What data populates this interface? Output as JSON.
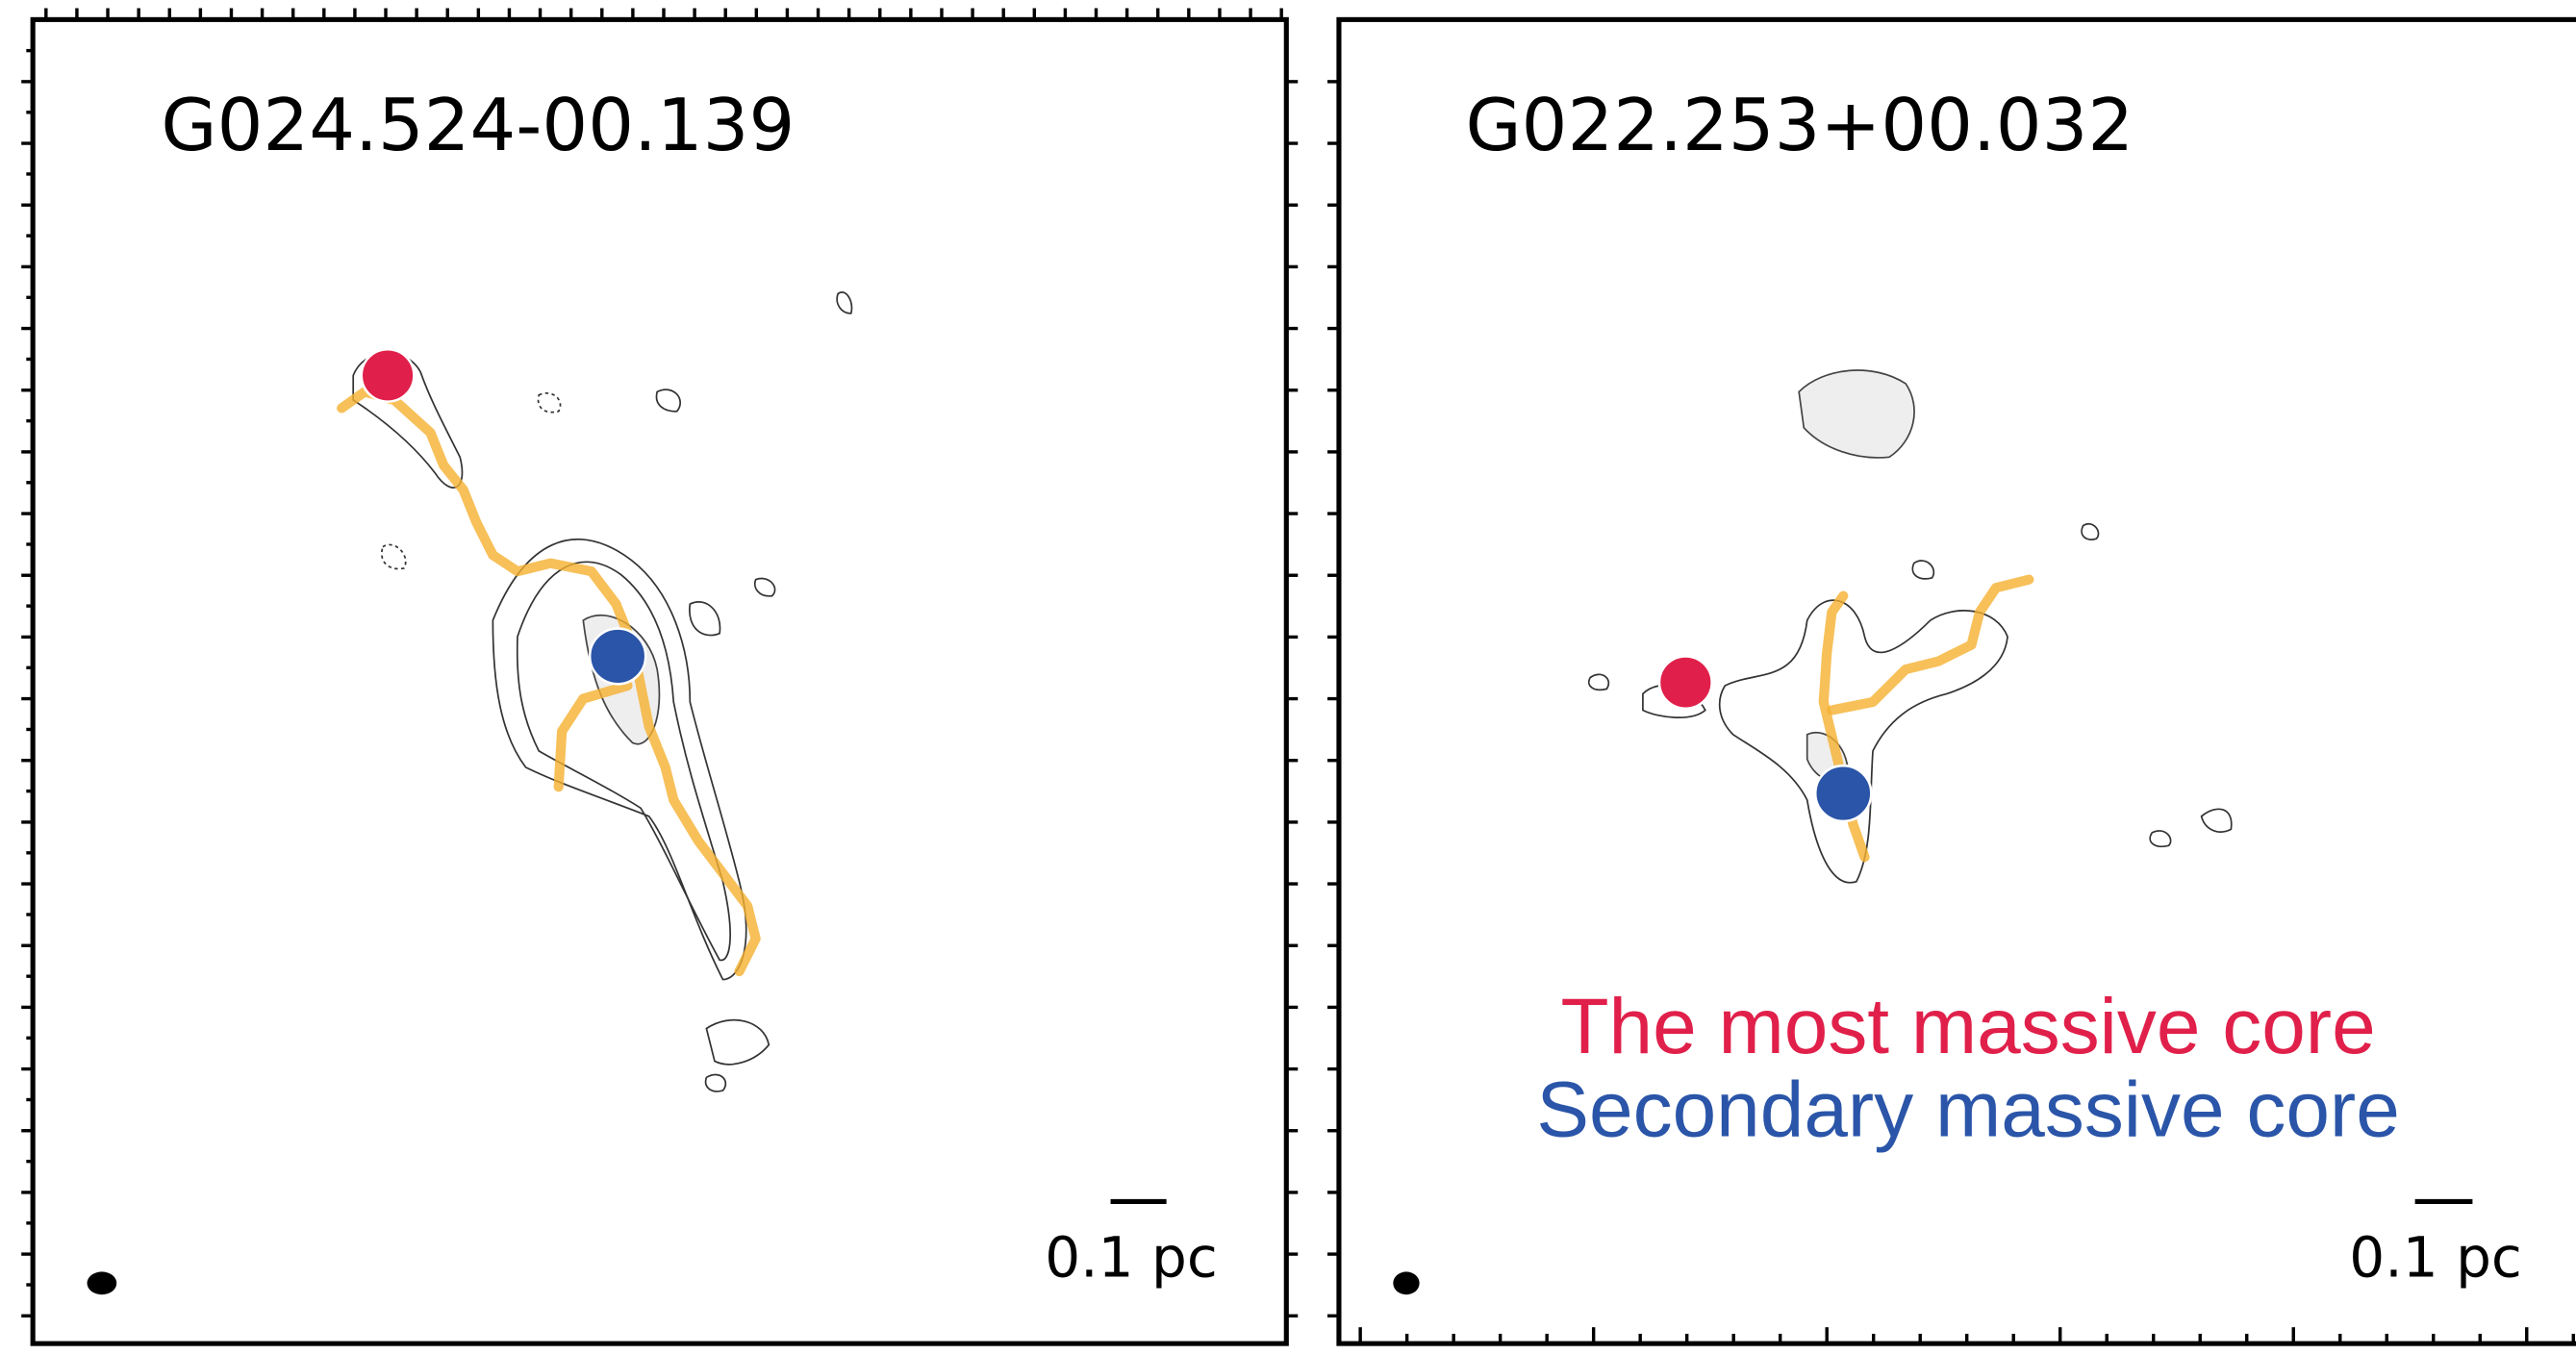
{
  "panels": [
    {
      "title": "G024.524-00.139",
      "scalebar_label": "0.1 pc"
    },
    {
      "title": "G022.253+00.032",
      "scalebar_label": "0.1 pc"
    }
  ],
  "legend": [
    {
      "text": "The most massive core",
      "color": "#e0204a"
    },
    {
      "text": "Secondary massive core",
      "color": "#2a55a8"
    }
  ]
}
